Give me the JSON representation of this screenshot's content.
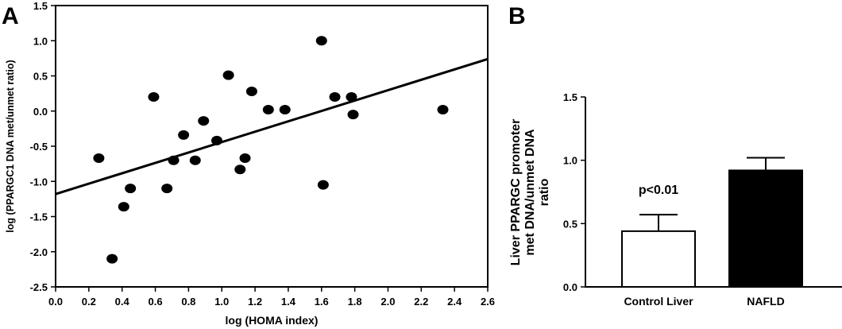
{
  "chart_data": [
    {
      "type": "scatter",
      "panel_label": "A",
      "xlabel": "log (HOMA index)",
      "ylabel": "log (PPARGC1 DNA met/unmet ratio)",
      "xlim": [
        0.0,
        2.6
      ],
      "ylim": [
        -2.5,
        1.5
      ],
      "x_ticks": [
        "0.0",
        "0.2",
        "0.4",
        "0.6",
        "0.8",
        "1.0",
        "1.2",
        "1.4",
        "1.6",
        "1.8",
        "2.0",
        "2.2",
        "2.4",
        "2.6"
      ],
      "y_ticks": [
        "-2.5",
        "-2.0",
        "-1.5",
        "-1.0",
        "-0.5",
        "0.0",
        "0.5",
        "1.0",
        "1.5"
      ],
      "points": [
        {
          "x": 0.26,
          "y": -0.67
        },
        {
          "x": 0.34,
          "y": -2.1
        },
        {
          "x": 0.41,
          "y": -1.36
        },
        {
          "x": 0.45,
          "y": -1.1
        },
        {
          "x": 0.59,
          "y": 0.2
        },
        {
          "x": 0.67,
          "y": -1.1
        },
        {
          "x": 0.71,
          "y": -0.7
        },
        {
          "x": 0.77,
          "y": -0.34
        },
        {
          "x": 0.84,
          "y": -0.7
        },
        {
          "x": 0.89,
          "y": -0.14
        },
        {
          "x": 0.97,
          "y": -0.42
        },
        {
          "x": 1.04,
          "y": 0.51
        },
        {
          "x": 1.11,
          "y": -0.83
        },
        {
          "x": 1.14,
          "y": -0.67
        },
        {
          "x": 1.18,
          "y": 0.28
        },
        {
          "x": 1.28,
          "y": 0.02
        },
        {
          "x": 1.38,
          "y": 0.02
        },
        {
          "x": 1.6,
          "y": 1.0
        },
        {
          "x": 1.61,
          "y": -1.05
        },
        {
          "x": 1.68,
          "y": 0.2
        },
        {
          "x": 1.78,
          "y": 0.2
        },
        {
          "x": 1.79,
          "y": -0.05
        },
        {
          "x": 2.33,
          "y": 0.02
        }
      ],
      "regression_line": {
        "x": [
          0.0,
          2.6
        ],
        "y": [
          -1.18,
          0.74
        ]
      },
      "grid": false
    },
    {
      "type": "bar",
      "panel_label": "B",
      "categories": [
        "Control Liver",
        "NAFLD"
      ],
      "values": [
        0.44,
        0.92
      ],
      "errors": [
        0.13,
        0.1
      ],
      "bar_colors": [
        "#ffffff",
        "#000000"
      ],
      "ylabel_lines": [
        "Liver PPARGC promoter",
        "met DNA/unmet DNA",
        "ratio"
      ],
      "ylim": [
        0.0,
        1.5
      ],
      "y_ticks": [
        "0.0",
        "0.5",
        "1.0",
        "1.5"
      ],
      "annotation": "p<0.01",
      "grid": false
    }
  ]
}
